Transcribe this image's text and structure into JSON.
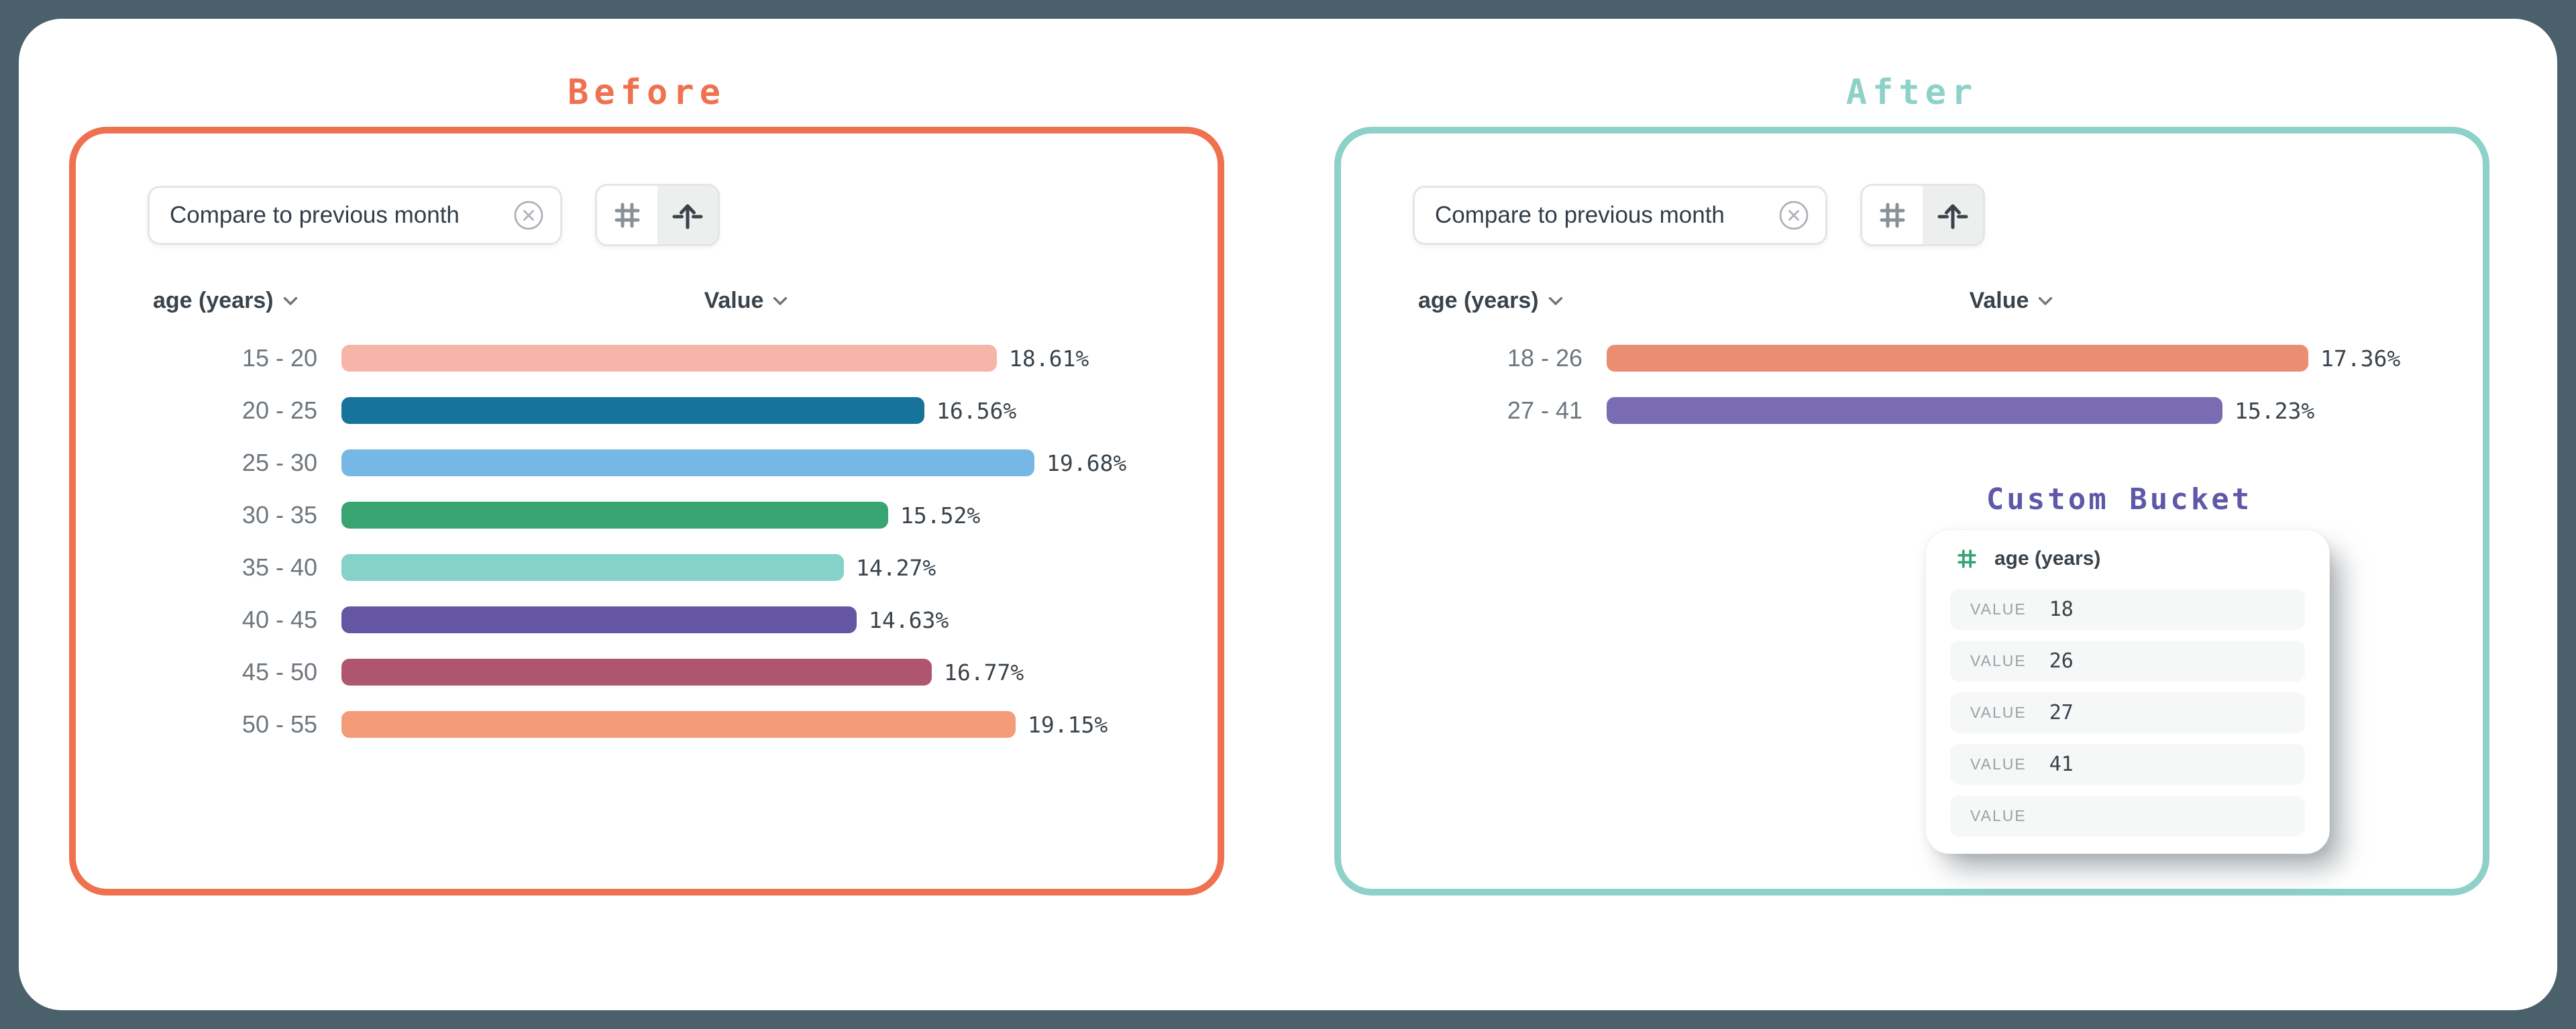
{
  "page": {
    "background": "#4A616B",
    "card_background": "#FFFFFF"
  },
  "before": {
    "title": "Before",
    "accent": "#EF7150",
    "chip": {
      "label": "Compare to previous month",
      "remove_icon": "x-circle-icon"
    },
    "toolbar": {
      "hash_icon": "hash-icon",
      "scale_icon": "arrow-up-scale-icon",
      "selected": "scale"
    },
    "columns": {
      "dimension": "age (years)",
      "value": "Value"
    },
    "rows": [
      {
        "label": "15 - 20",
        "value": 18.61,
        "display": "18.61%",
        "color": "#F7B4A9"
      },
      {
        "label": "20 - 25",
        "value": 16.56,
        "display": "16.56%",
        "color": "#16739A"
      },
      {
        "label": "25 - 30",
        "value": 19.68,
        "display": "19.68%",
        "color": "#75B8E6"
      },
      {
        "label": "30 - 35",
        "value": 15.52,
        "display": "15.52%",
        "color": "#38A471"
      },
      {
        "label": "35 - 40",
        "value": 14.27,
        "display": "14.27%",
        "color": "#85D2C8"
      },
      {
        "label": "40 - 45",
        "value": 14.63,
        "display": "14.63%",
        "color": "#6456A3"
      },
      {
        "label": "45 - 50",
        "value": 16.77,
        "display": "16.77%",
        "color": "#AF5570"
      },
      {
        "label": "50 - 55",
        "value": 19.15,
        "display": "19.15%",
        "color": "#F49B7A"
      }
    ]
  },
  "after": {
    "title": "After",
    "accent": "#8ED1C8",
    "chip": {
      "label": "Compare to previous month",
      "remove_icon": "x-circle-icon"
    },
    "toolbar": {
      "hash_icon": "hash-icon",
      "scale_icon": "arrow-up-scale-icon",
      "selected": "scale"
    },
    "columns": {
      "dimension": "age (years)",
      "value": "Value"
    },
    "rows": [
      {
        "label": "18 - 26",
        "value": 17.36,
        "display": "17.36%",
        "color": "#EA8E72"
      },
      {
        "label": "27 - 41",
        "value": 15.23,
        "display": "15.23%",
        "color": "#7A6CB2"
      }
    ],
    "custom_bucket": {
      "title": "Custom Bucket",
      "accent": "#5F58A8",
      "field": "age (years)",
      "field_icon": "hash-icon",
      "field_icon_color": "#34A474",
      "entries": [
        {
          "label": "VALUE",
          "value": "18"
        },
        {
          "label": "VALUE",
          "value": "26"
        },
        {
          "label": "VALUE",
          "value": "27"
        },
        {
          "label": "VALUE",
          "value": "41"
        },
        {
          "label": "VALUE",
          "value": ""
        }
      ]
    }
  },
  "chart_data": [
    {
      "type": "bar",
      "orientation": "horizontal",
      "title": "Before",
      "xlabel": "Value",
      "ylabel": "age (years)",
      "categories": [
        "15 - 20",
        "20 - 25",
        "25 - 30",
        "30 - 35",
        "35 - 40",
        "40 - 45",
        "45 - 50",
        "50 - 55"
      ],
      "values": [
        18.61,
        16.56,
        19.68,
        15.52,
        14.27,
        14.63,
        16.77,
        19.15
      ],
      "unit": "%",
      "data_labels": [
        "18.61%",
        "16.56%",
        "19.68%",
        "15.52%",
        "14.27%",
        "14.63%",
        "16.77%",
        "19.15%"
      ],
      "grid": false,
      "legend": false
    },
    {
      "type": "bar",
      "orientation": "horizontal",
      "title": "After",
      "xlabel": "Value",
      "ylabel": "age (years)",
      "categories": [
        "18 - 26",
        "27 - 41"
      ],
      "values": [
        17.36,
        15.23
      ],
      "unit": "%",
      "data_labels": [
        "17.36%",
        "15.23%"
      ],
      "grid": false,
      "legend": false
    }
  ]
}
